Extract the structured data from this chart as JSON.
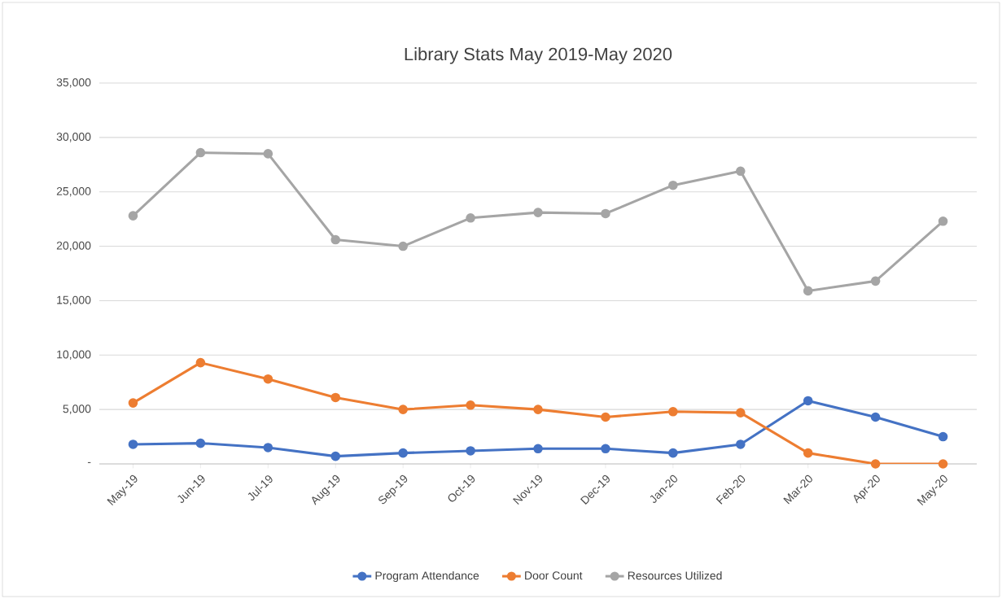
{
  "chart_data": {
    "type": "line",
    "title": "Library Stats May 2019-May 2020",
    "categories": [
      "May-19",
      "Jun-19",
      "Jul-19",
      "Aug-19",
      "Sep-19",
      "Oct-19",
      "Nov-19",
      "Dec-19",
      "Jan-20",
      "Feb-20",
      "Mar-20",
      "Apr-20",
      "May-20"
    ],
    "series": [
      {
        "name": "Program Attendance",
        "color": "#4472c4",
        "values": [
          1800,
          1900,
          1500,
          700,
          1000,
          1200,
          1400,
          1400,
          1000,
          1800,
          5800,
          4300,
          2500
        ]
      },
      {
        "name": "Door Count",
        "color": "#ed7d31",
        "values": [
          5600,
          9300,
          7800,
          6100,
          5000,
          5400,
          5000,
          4300,
          4800,
          4700,
          1000,
          0,
          0
        ]
      },
      {
        "name": "Resources Utilized",
        "color": "#a5a5a5",
        "values": [
          22800,
          28600,
          28500,
          20600,
          20000,
          22600,
          23100,
          23000,
          25600,
          26900,
          15900,
          16800,
          22300
        ]
      }
    ],
    "ylim": [
      0,
      35000
    ],
    "yticks": [
      {
        "value": 0,
        "label": "-"
      },
      {
        "value": 5000,
        "label": "5,000"
      },
      {
        "value": 10000,
        "label": "10,000"
      },
      {
        "value": 15000,
        "label": "15,000"
      },
      {
        "value": 20000,
        "label": "20,000"
      },
      {
        "value": 25000,
        "label": "25,000"
      },
      {
        "value": 30000,
        "label": "30,000"
      },
      {
        "value": 35000,
        "label": "35,000"
      }
    ],
    "grid": "y",
    "legend": "bottom",
    "marker": "circle",
    "line_style": "solid"
  }
}
